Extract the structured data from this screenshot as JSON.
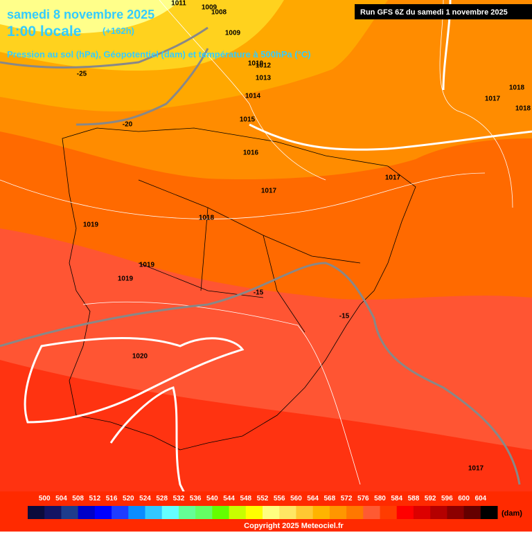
{
  "header": {
    "date": "samedi 8 novembre 2025",
    "time": "1:00 locale",
    "lead": "(+162h)",
    "subtitle": "Pression au sol (hPa), Géopotentiel (dam) et température à 500hPa (°C)",
    "run": "Run GFS 6Z du samedi 1 novembre 2025"
  },
  "map": {
    "pressure_labels": [
      "1011",
      "1009",
      "1008",
      "1009",
      "1010",
      "1012",
      "1013",
      "1014",
      "1015",
      "1016",
      "1017",
      "1017",
      "1018",
      "1019",
      "1019",
      "1019",
      "1020",
      "1017",
      "1018",
      "1018",
      "1017"
    ],
    "temperature_labels": [
      "-25",
      "-20",
      "-15",
      "-15"
    ]
  },
  "legend": {
    "labels": [
      500,
      504,
      508,
      512,
      516,
      520,
      524,
      528,
      532,
      536,
      540,
      544,
      548,
      552,
      556,
      560,
      564,
      568,
      572,
      576,
      580,
      584,
      588,
      592,
      596,
      600,
      604
    ],
    "colors": [
      "#0b0b3c",
      "#141464",
      "#1e3c8c",
      "#0000c8",
      "#0000ff",
      "#1e3cff",
      "#0a8cff",
      "#32c8ff",
      "#64ffff",
      "#64ff96",
      "#64ff64",
      "#64ff00",
      "#c8ff00",
      "#ffff00",
      "#ffff80",
      "#ffe664",
      "#ffc832",
      "#ffb400",
      "#ff9600",
      "#ff7800",
      "#ff5a32",
      "#ff3c00",
      "#ff0000",
      "#dc0000",
      "#b40000",
      "#8c0000",
      "#640000",
      "#000000"
    ],
    "unit": "(dam)"
  },
  "footer": {
    "copyright": "Copyright 2025 Meteociel.fr"
  }
}
